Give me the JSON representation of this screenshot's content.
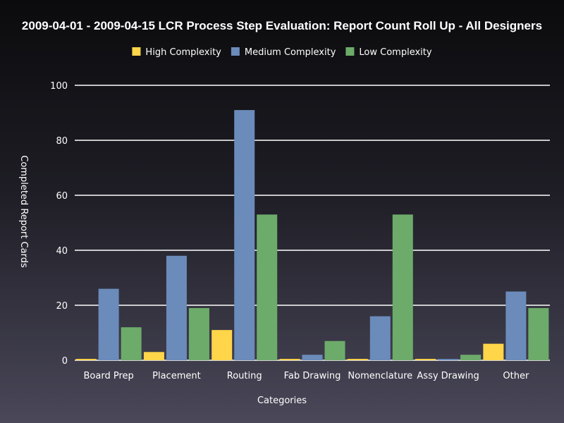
{
  "chart_data": {
    "type": "bar",
    "title": "2009-04-01 - 2009-04-15 LCR Process Step Evaluation: Report Count Roll Up - All Designers",
    "xlabel": "Categories",
    "ylabel": "Completed Report Cards",
    "ylim": [
      0,
      100
    ],
    "yticks": [
      "0",
      "20",
      "40",
      "60",
      "80",
      "100"
    ],
    "grid": true,
    "legend_position": "top",
    "categories": [
      "Board Prep",
      "Placement",
      "Routing",
      "Fab Drawing",
      "Nomenclature",
      "Assy Drawing",
      "Other"
    ],
    "series": [
      {
        "name": "High Complexity",
        "color": "#ffd54a",
        "values": [
          0.5,
          3,
          11,
          0.5,
          0.5,
          0.5,
          6
        ]
      },
      {
        "name": "Medium Complexity",
        "color": "#6b8bba",
        "values": [
          26,
          38,
          91,
          2,
          16,
          0.5,
          25
        ]
      },
      {
        "name": "Low Complexity",
        "color": "#6dab6a",
        "values": [
          12,
          19,
          53,
          7,
          53,
          2,
          19
        ]
      }
    ]
  }
}
